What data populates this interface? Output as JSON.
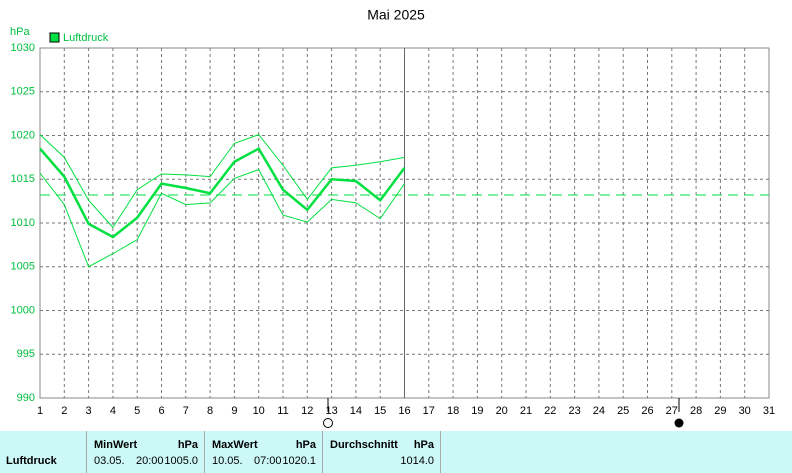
{
  "chart_data": {
    "type": "line",
    "title": "Mai 2025",
    "y_label": "hPa",
    "x": [
      1,
      2,
      3,
      4,
      5,
      6,
      7,
      8,
      9,
      10,
      11,
      12,
      13,
      14,
      15,
      16,
      17,
      18,
      19,
      20,
      21,
      22,
      23,
      24,
      25,
      26,
      27,
      28,
      29,
      30,
      31
    ],
    "series": [
      {
        "name": "Luftdruck",
        "color": "#00e040",
        "values": [
          1018.5,
          1015.3,
          1009.9,
          1008.4,
          1010.6,
          1014.5,
          1014.0,
          1013.4,
          1017.0,
          1018.5,
          1013.8,
          1011.5,
          1015.0,
          1014.8,
          1012.6,
          1016.3,
          null,
          null,
          null,
          null,
          null,
          null,
          null,
          null,
          null,
          null,
          null,
          null,
          null,
          null,
          null
        ]
      }
    ],
    "band": {
      "color": "#00e040",
      "high": [
        1020.1,
        1017.5,
        1012.6,
        1009.5,
        1013.8,
        1015.6,
        1015.5,
        1015.3,
        1019.1,
        1020.1,
        1016.6,
        1012.7,
        1016.3,
        1016.6,
        1017.0,
        1017.5,
        null,
        null,
        null,
        null,
        null,
        null,
        null,
        null,
        null,
        null,
        null,
        null,
        null,
        null,
        null
      ],
      "low": [
        1015.7,
        1012.1,
        1005.0,
        1006.5,
        1008.1,
        1013.4,
        1012.1,
        1012.3,
        1015.1,
        1016.1,
        1010.9,
        1010.1,
        1012.7,
        1012.3,
        1010.5,
        1014.5,
        null,
        null,
        null,
        null,
        null,
        null,
        null,
        null,
        null,
        null,
        null,
        null,
        null,
        null,
        null
      ]
    },
    "reference_line": 1013.2,
    "current_x": 16,
    "xlim": [
      1,
      31
    ],
    "xticks": [
      1,
      2,
      3,
      4,
      5,
      6,
      7,
      8,
      9,
      10,
      11,
      12,
      13,
      14,
      15,
      16,
      17,
      18,
      19,
      20,
      21,
      22,
      23,
      24,
      25,
      26,
      27,
      28,
      29,
      30,
      31
    ],
    "ylim": [
      990,
      1030
    ],
    "yticks": [
      990,
      995,
      1000,
      1005,
      1010,
      1015,
      1020,
      1025,
      1030
    ],
    "grid": true
  },
  "stats_table": {
    "row_label": "Luftdruck",
    "columns": [
      {
        "title": "MinWert",
        "unit": "hPa",
        "date": "03.05.",
        "time": "20:00",
        "value": "1005.0"
      },
      {
        "title": "MaxWert",
        "unit": "hPa",
        "date": "10.05.",
        "time": "07:00",
        "value": "1020.1"
      },
      {
        "title": "Durchschnitt",
        "unit": "hPa",
        "value": "1014.0"
      }
    ]
  }
}
